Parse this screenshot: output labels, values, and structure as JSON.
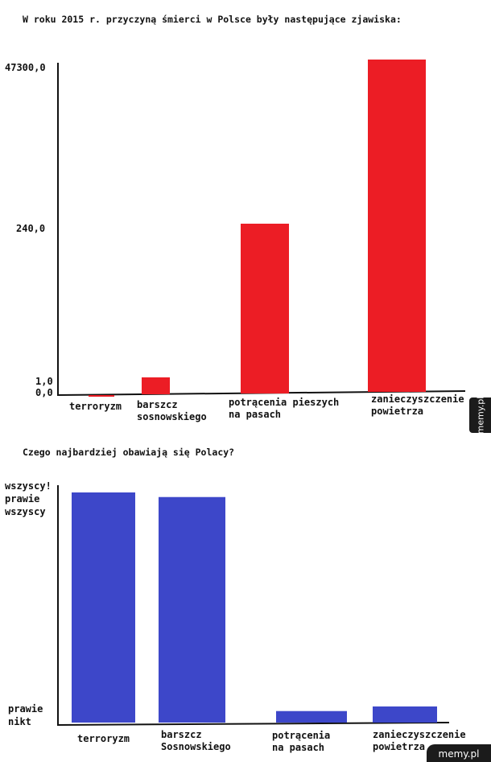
{
  "chart_data": [
    {
      "type": "bar",
      "title": "W roku 2015 r. przyczyną śmierci w Polsce były następujące zjawiska:",
      "categories": [
        [
          "terroryzm"
        ],
        [
          "barszcz",
          "sosnowskiego"
        ],
        [
          "potrącenia pieszych",
          "na pasach"
        ],
        [
          "zanieczyszczenie",
          "powietrza"
        ]
      ],
      "values": [
        0.0,
        1.0,
        240.0,
        47300.0
      ],
      "y_ticks": [
        "47300,0",
        "240,0",
        "1,0",
        "0,0"
      ],
      "color": "#ec1d25",
      "grid": false
    },
    {
      "type": "bar",
      "title": "Czego najbardziej obawiają się Polacy?",
      "categories": [
        [
          "terroryzm"
        ],
        [
          "barszcz",
          "Sosnowskiego"
        ],
        [
          "potrącenia",
          "na pasach"
        ],
        [
          "zanieczyszczenie",
          "powietrza"
        ]
      ],
      "values": [
        1.0,
        0.98,
        0.05,
        0.07
      ],
      "value_unit": "fraction of Poles",
      "y_ticks_top": [
        "wszyscy!",
        "prawie",
        "wszyscy"
      ],
      "y_ticks_bottom": [
        "prawie",
        "nikt"
      ],
      "color": "#3d47c9",
      "grid": false
    }
  ],
  "watermark": {
    "side": "memy.pl",
    "bottom": "memy.pl"
  }
}
